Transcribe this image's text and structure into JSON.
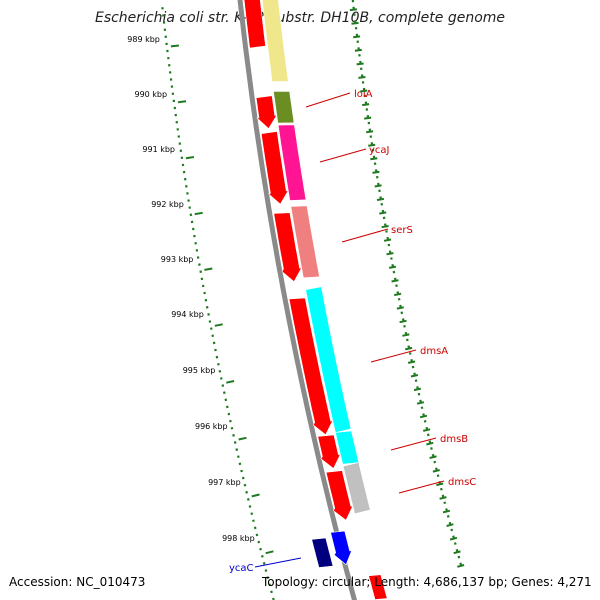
{
  "title": "Escherichia coli str. K-12 substr. DH10B, complete genome",
  "footer": {
    "accession_label": "Accession:",
    "accession": "NC_010473",
    "topology_label": "Topology:",
    "topology": "circular",
    "length_label": "Length:",
    "length": "4,686,137 bp",
    "genes_label": "Genes:",
    "genes": "4,271"
  },
  "colors": {
    "backbone": "#8a8a8a",
    "tick": "#1f7a1f",
    "cds_red": "#ff0000",
    "cds_blue_dark": "#00007f",
    "cds_blue": "#0000ff",
    "gene_label_red": "#cc0000",
    "gene_label_blue": "#0000cc"
  },
  "ruler": {
    "unit": "kbp",
    "labels": [
      "989 kbp",
      "990 kbp",
      "991 kbp",
      "992 kbp",
      "993 kbp",
      "994 kbp",
      "995 kbp",
      "996 kbp",
      "997 kbp",
      "998 kbp"
    ]
  },
  "genes": [
    {
      "name": "lolA",
      "label_color": "#cc0000"
    },
    {
      "name": "ycaJ",
      "label_color": "#cc0000"
    },
    {
      "name": "serS",
      "label_color": "#cc0000"
    },
    {
      "name": "dmsA",
      "label_color": "#cc0000"
    },
    {
      "name": "dmsB",
      "label_color": "#cc0000"
    },
    {
      "name": "dmsC",
      "label_color": "#cc0000"
    },
    {
      "name": "ycaC",
      "label_color": "#0000cc"
    }
  ],
  "features": [
    {
      "type": "cds",
      "color": "#ff0000"
    },
    {
      "type": "cds",
      "color": "#ff0000"
    },
    {
      "type": "cds",
      "color": "#ff0000"
    },
    {
      "type": "cds",
      "color": "#ff0000"
    },
    {
      "type": "cds",
      "color": "#ff0000"
    },
    {
      "type": "cds",
      "color": "#ff0000"
    },
    {
      "type": "cds",
      "color": "#ff0000"
    },
    {
      "type": "cds",
      "color": "#00007f"
    },
    {
      "type": "cds",
      "color": "#0000ff"
    },
    {
      "type": "gene",
      "color": "#f0e68c"
    },
    {
      "type": "gene",
      "color": "#6b8e23"
    },
    {
      "type": "gene",
      "color": "#ff1493"
    },
    {
      "type": "gene",
      "color": "#f08080"
    },
    {
      "type": "gene",
      "color": "#00ffff"
    },
    {
      "type": "gene",
      "color": "#00ffff"
    },
    {
      "type": "gene",
      "color": "#c0c0c0"
    },
    {
      "type": "cds",
      "color": "#ff0000"
    }
  ]
}
